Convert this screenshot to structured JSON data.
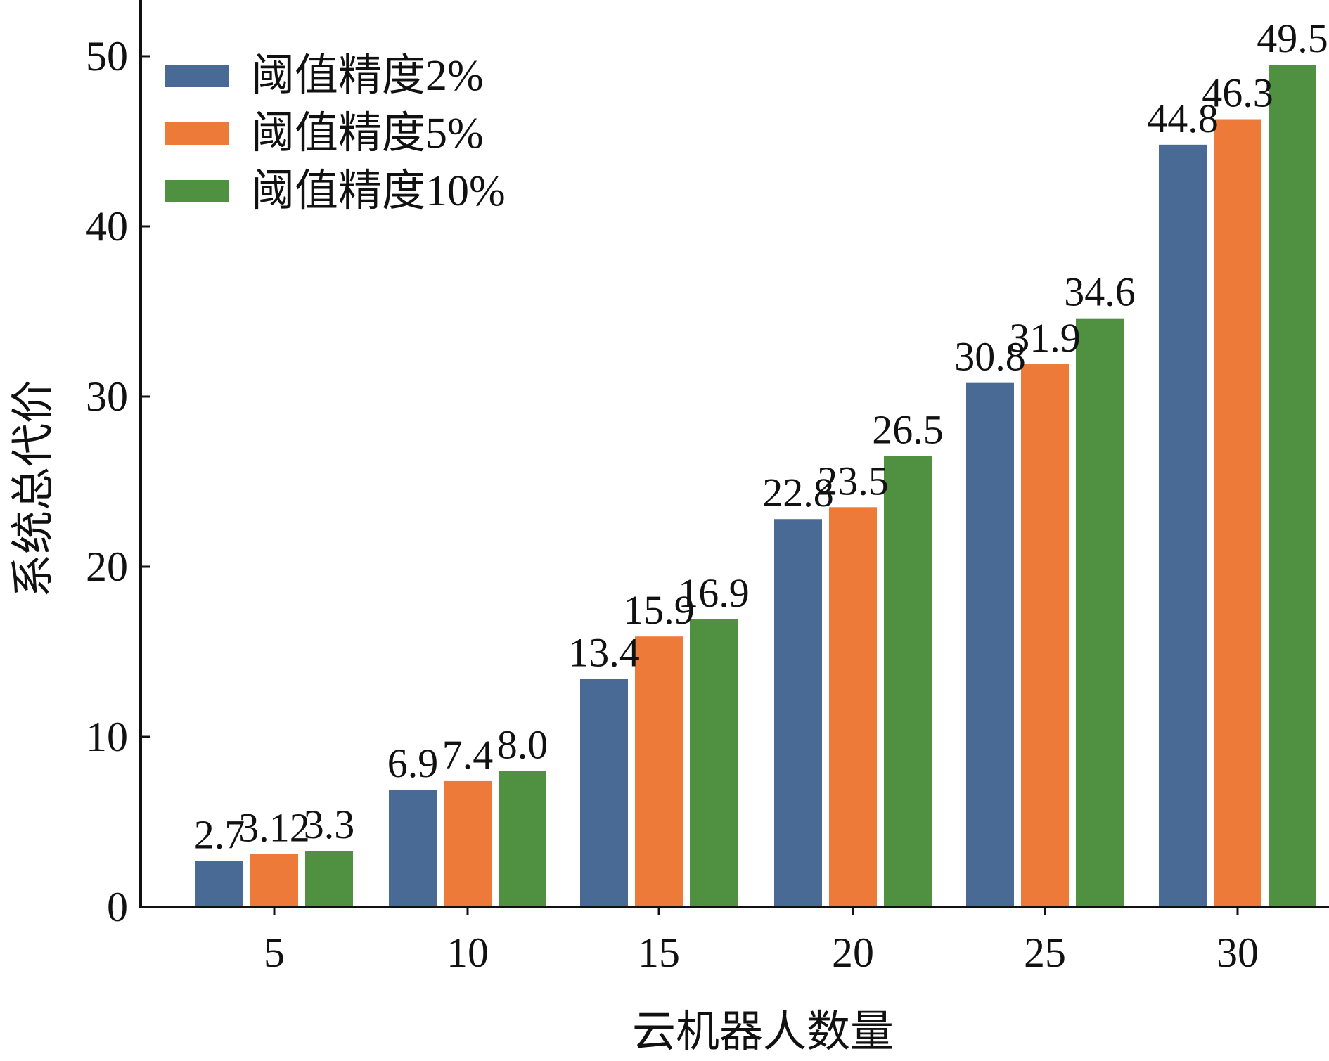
{
  "chart_data": {
    "type": "bar",
    "xlabel": "云机器人数量",
    "ylabel": "系统总代价",
    "categories": [
      "5",
      "10",
      "15",
      "20",
      "25",
      "30"
    ],
    "ylim": [
      0,
      53
    ],
    "yticks": [
      0,
      10,
      20,
      30,
      40,
      50
    ],
    "grid": false,
    "legend_position": "top-left",
    "series": [
      {
        "name": "阈值精度2%",
        "color": "#4a6a96",
        "values": [
          2.7,
          6.9,
          13.4,
          22.8,
          30.8,
          44.8
        ],
        "labels": [
          "2.7",
          "6.9",
          "13.4",
          "22.8",
          "30.8",
          "44.8"
        ]
      },
      {
        "name": "阈值精度5%",
        "color": "#ee7a3a",
        "values": [
          3.12,
          7.4,
          15.9,
          23.5,
          31.9,
          46.3
        ],
        "labels": [
          "3.12",
          "7.4",
          "15.9",
          "23.5",
          "31.9",
          "46.3"
        ]
      },
      {
        "name": "阈值精度10%",
        "color": "#4f9140",
        "values": [
          3.3,
          8.0,
          16.9,
          26.5,
          34.6,
          49.5
        ],
        "labels": [
          "3.3",
          "8.0",
          "16.9",
          "26.5",
          "34.6",
          "49.5"
        ]
      }
    ]
  }
}
